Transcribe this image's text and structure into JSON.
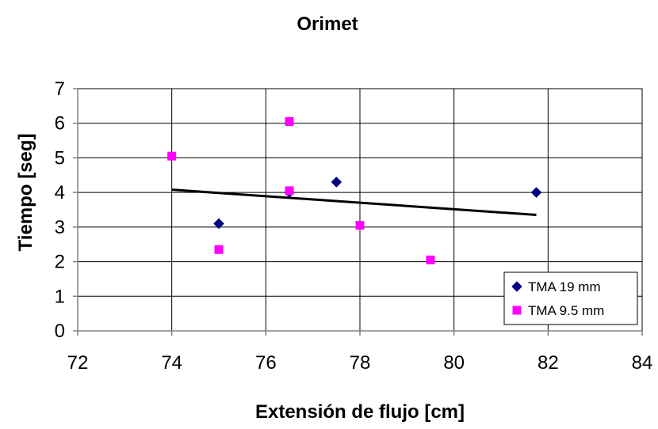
{
  "chart_data": {
    "type": "scatter",
    "title": "Orimet",
    "xlabel": "Extensión de flujo [cm]",
    "ylabel": "Tiempo [seg]",
    "xlim": [
      72,
      84
    ],
    "ylim": [
      0,
      7
    ],
    "xticks": [
      72,
      74,
      76,
      78,
      80,
      82,
      84
    ],
    "yticks": [
      0,
      1,
      2,
      3,
      4,
      5,
      6,
      7
    ],
    "grid": true,
    "legend_position": "bottom-right",
    "series": [
      {
        "name": "TMA 19 mm",
        "marker": "diamond",
        "color": "#000080",
        "points": [
          [
            75.0,
            3.1
          ],
          [
            76.5,
            4.0
          ],
          [
            77.5,
            4.3
          ],
          [
            81.75,
            4.0
          ]
        ]
      },
      {
        "name": "TMA 9.5 mm",
        "marker": "square",
        "color": "#FF00FF",
        "points": [
          [
            74.0,
            5.05
          ],
          [
            75.0,
            2.35
          ],
          [
            76.5,
            6.05
          ],
          [
            76.5,
            4.05
          ],
          [
            78.0,
            3.05
          ],
          [
            79.5,
            2.05
          ]
        ]
      }
    ],
    "trendline": {
      "color": "#000000",
      "points": [
        [
          74.0,
          4.08
        ],
        [
          81.75,
          3.35
        ]
      ]
    }
  }
}
